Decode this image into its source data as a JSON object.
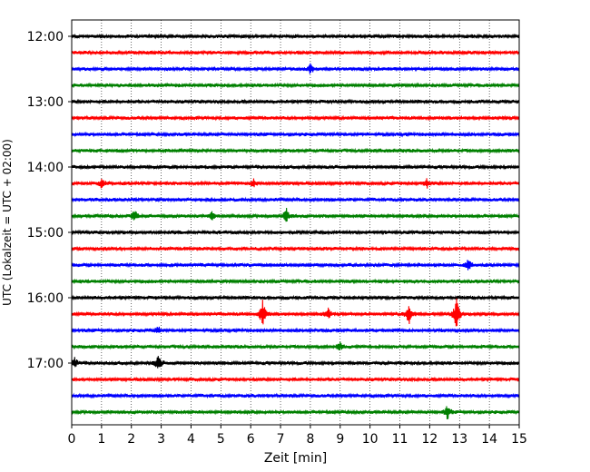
{
  "chart_data": {
    "type": "line",
    "xlabel": "Zeit  [min]",
    "ylabel": "UTC (Lokalzeit = UTC + 02:00)",
    "xlim": [
      0,
      15
    ],
    "x_ticks": [
      "0",
      "1",
      "2",
      "3",
      "4",
      "5",
      "6",
      "7",
      "8",
      "9",
      "10",
      "11",
      "12",
      "13",
      "14",
      "15"
    ],
    "y_ticks": [
      "12:00",
      "13:00",
      "14:00",
      "15:00",
      "16:00",
      "17:00"
    ],
    "grid_x": true,
    "trace_interval_min": 15,
    "trace_colors": [
      "#000000",
      "#ff0000",
      "#0000ff",
      "#008000"
    ],
    "traces": [
      {
        "start": "12:00",
        "events": []
      },
      {
        "start": "12:15",
        "events": []
      },
      {
        "start": "12:30",
        "events": [
          {
            "t": 8.0,
            "amp": 0.5
          }
        ]
      },
      {
        "start": "12:45",
        "events": []
      },
      {
        "start": "13:00",
        "events": []
      },
      {
        "start": "13:15",
        "events": []
      },
      {
        "start": "13:30",
        "events": []
      },
      {
        "start": "13:45",
        "events": []
      },
      {
        "start": "14:00",
        "events": []
      },
      {
        "start": "14:15",
        "events": [
          {
            "t": 1.0,
            "amp": 0.5
          },
          {
            "t": 6.1,
            "amp": 0.4
          },
          {
            "t": 11.9,
            "amp": 0.5
          }
        ]
      },
      {
        "start": "14:30",
        "events": []
      },
      {
        "start": "14:45",
        "events": [
          {
            "t": 2.1,
            "amp": 0.7
          },
          {
            "t": 4.7,
            "amp": 0.5
          },
          {
            "t": 7.2,
            "amp": 0.8
          }
        ]
      },
      {
        "start": "15:00",
        "events": []
      },
      {
        "start": "15:15",
        "events": []
      },
      {
        "start": "15:30",
        "events": [
          {
            "t": 13.3,
            "amp": 0.6
          }
        ]
      },
      {
        "start": "15:45",
        "events": []
      },
      {
        "start": "16:00",
        "events": []
      },
      {
        "start": "16:15",
        "events": [
          {
            "t": 6.4,
            "amp": 1.5
          },
          {
            "t": 8.6,
            "amp": 0.6
          },
          {
            "t": 11.3,
            "amp": 1.2
          },
          {
            "t": 12.9,
            "amp": 1.8
          }
        ]
      },
      {
        "start": "16:30",
        "events": [
          {
            "t": 2.9,
            "amp": 0.4
          }
        ]
      },
      {
        "start": "16:45",
        "events": [
          {
            "t": 9.0,
            "amp": 0.4
          }
        ]
      },
      {
        "start": "17:00",
        "events": [
          {
            "t": 0.1,
            "amp": 0.7
          },
          {
            "t": 2.9,
            "amp": 0.8
          }
        ]
      },
      {
        "start": "17:15",
        "events": []
      },
      {
        "start": "17:30",
        "events": []
      },
      {
        "start": "17:45",
        "events": [
          {
            "t": 12.6,
            "amp": 0.8
          }
        ]
      }
    ]
  }
}
